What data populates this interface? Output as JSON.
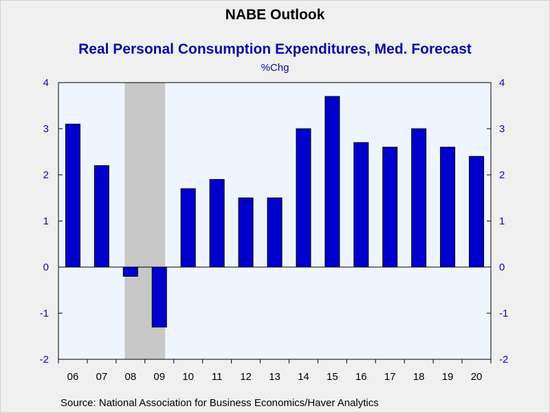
{
  "title": "NABE Outlook",
  "colors": {
    "bar": "#0000cc",
    "plot_bg": "#eef5ff",
    "recession": "#c8c8c8",
    "axis_text": "#0a0aa8",
    "category_text": "#000000"
  },
  "chart_data": {
    "type": "bar",
    "title": "Real Personal Consumption Expenditures, Med. Forecast",
    "unit_label": "%Chg",
    "categories": [
      "06",
      "07",
      "08",
      "09",
      "10",
      "11",
      "12",
      "13",
      "14",
      "15",
      "16",
      "17",
      "18",
      "19",
      "20"
    ],
    "values": [
      3.1,
      2.2,
      -0.2,
      -1.3,
      1.7,
      1.9,
      1.5,
      1.5,
      3.0,
      3.7,
      2.7,
      2.6,
      3.0,
      2.6,
      2.4
    ],
    "ylim": [
      -2,
      4
    ],
    "yticks": [
      4,
      3,
      2,
      1,
      0,
      -1,
      -2
    ],
    "ytick_labels_left": [
      "4",
      "3",
      "2",
      "1",
      "0",
      "-1",
      "-2"
    ],
    "ytick_labels_right": [
      "4",
      "3",
      "2",
      "1",
      "0",
      "-1",
      "-2"
    ],
    "shaded_period": {
      "from": "08",
      "to": "09"
    },
    "grid": false,
    "legend": "none"
  },
  "source": "Source:  National Association for Business Economics/Haver Analytics"
}
